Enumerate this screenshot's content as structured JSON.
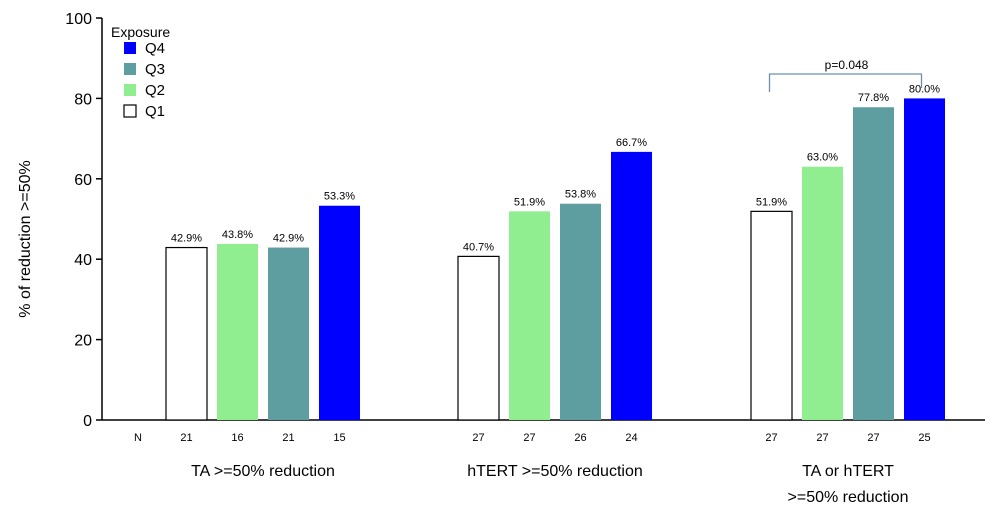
{
  "chart_data": {
    "type": "bar",
    "ylabel": "% of reduction >=50%",
    "ylim": [
      0,
      100
    ],
    "yticks": [
      0,
      20,
      40,
      60,
      80,
      100
    ],
    "n_label": "N",
    "legend": {
      "title": "Exposure",
      "placement": "top-left",
      "entries": [
        {
          "name": "Q4",
          "color": "#0000ff"
        },
        {
          "name": "Q3",
          "color": "#5f9ea0"
        },
        {
          "name": "Q2",
          "color": "#90ee90"
        },
        {
          "name": "Q1",
          "color": "#ffffff"
        }
      ]
    },
    "bar_order": [
      "Q1",
      "Q2",
      "Q3",
      "Q4"
    ],
    "groups": [
      {
        "label_lines": [
          "TA >=50% reduction"
        ],
        "bars": [
          {
            "series": "Q1",
            "value": 42.9,
            "label": "42.9%",
            "n": "21"
          },
          {
            "series": "Q2",
            "value": 43.8,
            "label": "43.8%",
            "n": "16"
          },
          {
            "series": "Q3",
            "value": 42.9,
            "label": "42.9%",
            "n": "21"
          },
          {
            "series": "Q4",
            "value": 53.3,
            "label": "53.3%",
            "n": "15"
          }
        ]
      },
      {
        "label_lines": [
          "hTERT >=50% reduction"
        ],
        "bars": [
          {
            "series": "Q1",
            "value": 40.7,
            "label": "40.7%",
            "n": "27"
          },
          {
            "series": "Q2",
            "value": 51.9,
            "label": "51.9%",
            "n": "27"
          },
          {
            "series": "Q3",
            "value": 53.8,
            "label": "53.8%",
            "n": "26"
          },
          {
            "series": "Q4",
            "value": 66.7,
            "label": "66.7%",
            "n": "24"
          }
        ]
      },
      {
        "label_lines": [
          "TA or hTERT",
          ">=50% reduction"
        ],
        "bars": [
          {
            "series": "Q1",
            "value": 51.9,
            "label": "51.9%",
            "n": "27"
          },
          {
            "series": "Q2",
            "value": 63.0,
            "label": "63.0%",
            "n": "27"
          },
          {
            "series": "Q3",
            "value": 77.8,
            "label": "77.8%",
            "n": "27"
          },
          {
            "series": "Q4",
            "value": 80.0,
            "label": "80.0%",
            "n": "25"
          }
        ]
      }
    ],
    "annotation": {
      "text": "p=0.048",
      "group": 2,
      "from_series": "Q1",
      "to_series": "Q4"
    }
  }
}
